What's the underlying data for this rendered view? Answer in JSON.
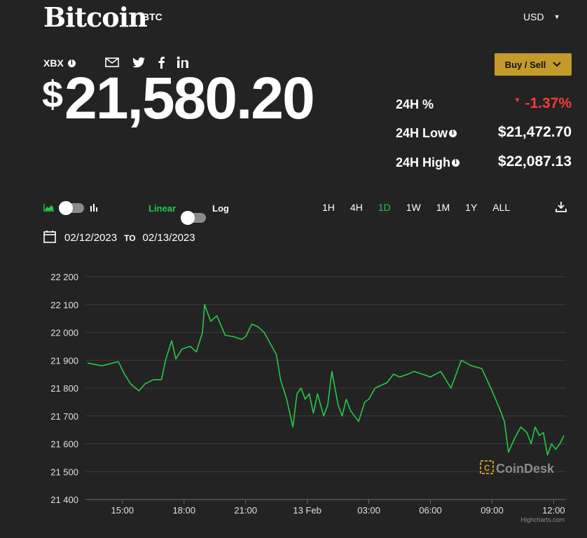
{
  "header": {
    "title": "Bitcoin",
    "symbol": "BTC",
    "currency": "USD"
  },
  "ticker": {
    "exchange": "XBX",
    "price_symbol": "$",
    "price": "21,580.20"
  },
  "share_icons": [
    "mail-icon",
    "twitter-icon",
    "facebook-icon",
    "linkedin-icon"
  ],
  "actions": {
    "buy_sell": "Buy / Sell"
  },
  "stats": [
    {
      "label": "24H %",
      "value": "-1.37%",
      "info": false,
      "trend": "down"
    },
    {
      "label": "24H Low",
      "value": "$21,472.70",
      "info": true
    },
    {
      "label": "24H High",
      "value": "$22,087.13",
      "info": true
    }
  ],
  "controls": {
    "scale_left": "Linear",
    "scale_right": "Log",
    "ranges": [
      "1H",
      "4H",
      "1D",
      "1W",
      "1M",
      "1Y",
      "ALL"
    ],
    "active_range": "1D",
    "date_from": "02/12/2023",
    "date_sep": "TO",
    "date_to": "02/13/2023"
  },
  "colors": {
    "accent": "#24c94a",
    "button": "#c49a2a",
    "negative": "#f23b3b",
    "background": "#232323"
  },
  "chart_data": {
    "type": "line",
    "y_ticks": [
      "22 200",
      "22 100",
      "22 000",
      "21 900",
      "21 800",
      "21 700",
      "21 600",
      "21 500",
      "21 400"
    ],
    "ylim": [
      21400,
      22200
    ],
    "x_ticks": [
      "15:00",
      "18:00",
      "21:00",
      "13 Feb",
      "03:00",
      "06:00",
      "09:00",
      "12:00"
    ],
    "xlim_hours": [
      13.2,
      36.6
    ],
    "x_unit": "hours since 02/12/2023 00:00",
    "grid": true,
    "watermark": "CoinDesk",
    "credit": "Highcharts.com",
    "series": [
      {
        "name": "BTC",
        "x": [
          13.3,
          14,
          14.8,
          15.1,
          15.4,
          15.8,
          16.1,
          16.5,
          16.9,
          17.1,
          17.4,
          17.6,
          17.9,
          18.3,
          18.6,
          18.9,
          19.0,
          19.3,
          19.6,
          20.0,
          20.4,
          20.8,
          21.0,
          21.3,
          21.6,
          21.9,
          22.2,
          22.5,
          22.7,
          23.0,
          23.3,
          23.5,
          23.7,
          23.9,
          24.1,
          24.3,
          24.5,
          24.8,
          25.0,
          25.2,
          25.5,
          25.7,
          25.9,
          26.1,
          26.3,
          26.5,
          26.8,
          27.0,
          27.3,
          27.6,
          27.9,
          28.2,
          28.5,
          28.9,
          29.2,
          29.6,
          30.0,
          30.5,
          31.0,
          31.5,
          32.0,
          32.5,
          33.0,
          33.4,
          33.6,
          33.8,
          34.1,
          34.4,
          34.7,
          34.9,
          35.1,
          35.3,
          35.5,
          35.7,
          35.9,
          36.1,
          36.3,
          36.5
        ],
        "y": [
          21890,
          21880,
          21895,
          21850,
          21815,
          21790,
          21815,
          21830,
          21830,
          21900,
          21970,
          21905,
          21940,
          21950,
          21930,
          22000,
          22100,
          22040,
          22060,
          21990,
          21985,
          21975,
          21985,
          22030,
          22020,
          22000,
          21960,
          21920,
          21830,
          21760,
          21660,
          21780,
          21800,
          21760,
          21780,
          21710,
          21780,
          21700,
          21740,
          21860,
          21740,
          21700,
          21760,
          21720,
          21700,
          21680,
          21750,
          21760,
          21800,
          21810,
          21820,
          21850,
          21840,
          21850,
          21860,
          21850,
          21840,
          21860,
          21800,
          21900,
          21880,
          21870,
          21790,
          21720,
          21680,
          21570,
          21620,
          21660,
          21640,
          21600,
          21660,
          21630,
          21640,
          21560,
          21600,
          21580,
          21600,
          21630
        ]
      }
    ]
  }
}
